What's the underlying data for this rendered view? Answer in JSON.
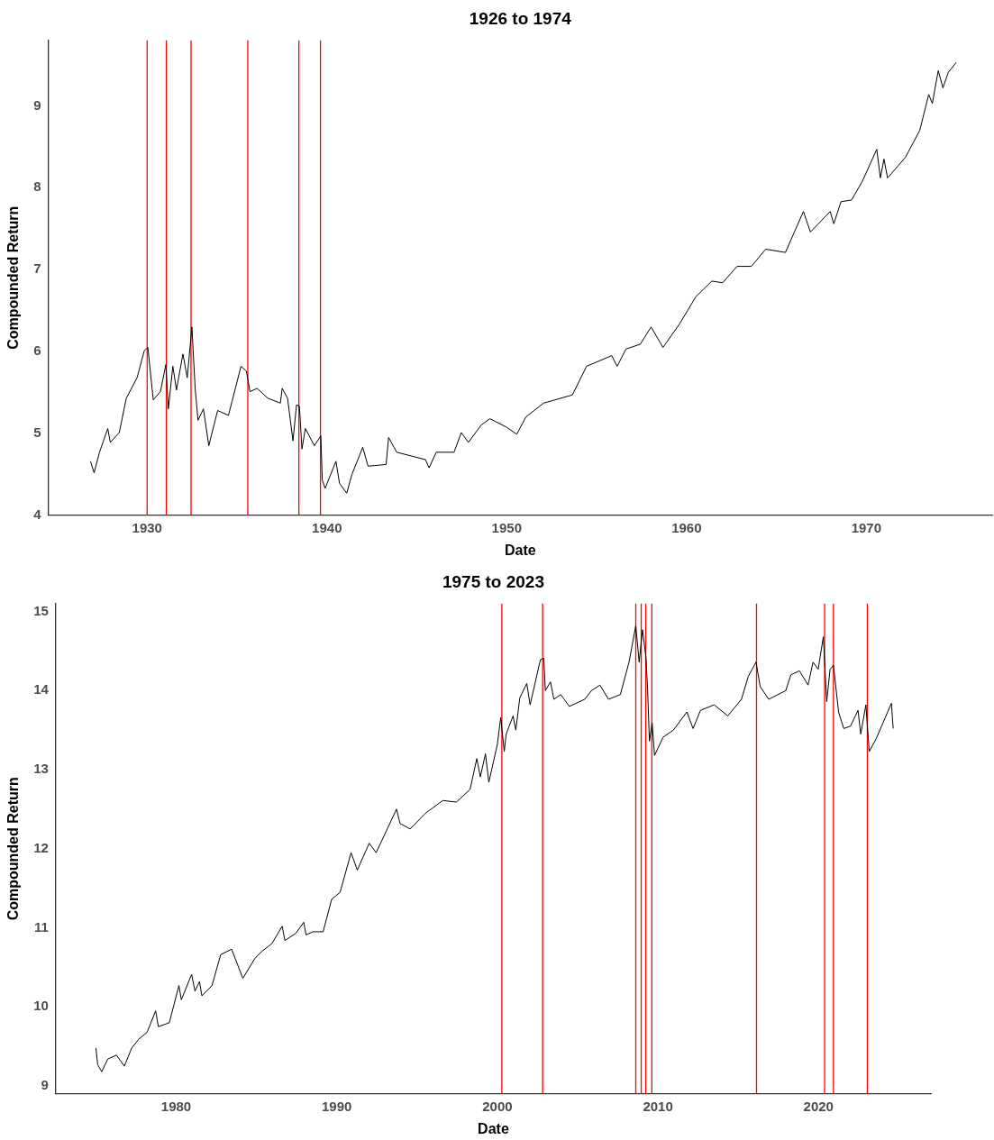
{
  "chart_data": [
    {
      "type": "line",
      "title": "1926 to 1974",
      "xlabel": "Date",
      "ylabel": "Compounded Return",
      "x": [
        1926.85,
        1927.05,
        1927.35,
        1927.81,
        1927.95,
        1928.45,
        1928.84,
        1929.44,
        1929.84,
        1930.04,
        1930.34,
        1930.74,
        1931.04,
        1931.18,
        1931.43,
        1931.63,
        1931.99,
        1932.23,
        1932.49,
        1932.67,
        1932.83,
        1933.13,
        1933.43,
        1933.92,
        1934.52,
        1934.72,
        1935.22,
        1935.52,
        1935.72,
        1936.12,
        1936.71,
        1937.41,
        1937.51,
        1937.81,
        1938.11,
        1938.31,
        1938.47,
        1938.61,
        1938.8,
        1939.3,
        1939.66,
        1939.74,
        1939.9,
        1940.5,
        1940.7,
        1941.1,
        1941.39,
        1941.99,
        1942.29,
        1943.29,
        1943.43,
        1943.88,
        1945.48,
        1945.68,
        1946.08,
        1947.07,
        1947.47,
        1947.87,
        1948.57,
        1949.06,
        1949.96,
        1950.56,
        1951.06,
        1952.05,
        1953.65,
        1954.44,
        1955.84,
        1956.14,
        1956.63,
        1957.43,
        1958.03,
        1958.69,
        1959.62,
        1960.52,
        1961.41,
        1962.01,
        1962.81,
        1963.61,
        1964.4,
        1965.5,
        1966.0,
        1966.5,
        1966.89,
        1967.99,
        1968.19,
        1968.59,
        1969.18,
        1969.78,
        1970.58,
        1970.78,
        1970.98,
        1971.18,
        1972.17,
        1972.97,
        1973.47,
        1973.67,
        1974.0,
        1974.26,
        1974.56,
        1975.0
      ],
      "series": [
        {
          "color": "#000000",
          "values": [
            4.66,
            4.52,
            4.77,
            5.06,
            4.89,
            5.01,
            5.43,
            5.68,
            6.01,
            6.05,
            5.41,
            5.51,
            5.84,
            5.3,
            5.82,
            5.53,
            5.97,
            5.68,
            6.3,
            5.55,
            5.16,
            5.3,
            4.85,
            5.28,
            5.22,
            5.39,
            5.82,
            5.76,
            5.51,
            5.55,
            5.43,
            5.37,
            5.55,
            5.43,
            4.91,
            5.35,
            5.33,
            4.81,
            5.06,
            4.85,
            4.97,
            4.43,
            4.33,
            4.66,
            4.39,
            4.27,
            4.5,
            4.83,
            4.6,
            4.62,
            4.95,
            4.77,
            4.68,
            4.58,
            4.77,
            4.77,
            5.01,
            4.89,
            5.1,
            5.18,
            5.08,
            4.99,
            5.2,
            5.37,
            5.47,
            5.82,
            5.95,
            5.82,
            6.03,
            6.09,
            6.3,
            6.05,
            6.34,
            6.67,
            6.86,
            6.84,
            7.04,
            7.04,
            7.25,
            7.21,
            7.46,
            7.71,
            7.46,
            7.71,
            7.56,
            7.83,
            7.85,
            8.08,
            8.47,
            8.12,
            8.35,
            8.12,
            8.37,
            8.7,
            9.14,
            9.03,
            9.43,
            9.22,
            9.41,
            9.53
          ]
        }
      ],
      "xlim": [
        1924.5,
        1977
      ],
      "xticks": [
        1930,
        1940,
        1950,
        1960,
        1970
      ],
      "ylim": [
        4,
        9.8
      ],
      "yticks": [
        4,
        5,
        6,
        7,
        8,
        9
      ],
      "ref_lines": [
        {
          "axis": "x",
          "value": 1930.0,
          "color": "#ff0000"
        },
        {
          "axis": "x",
          "value": 1931.07,
          "color": "#ff0000"
        },
        {
          "axis": "x",
          "value": 1932.44,
          "color": "#ff0000"
        },
        {
          "axis": "x",
          "value": 1935.6,
          "color": "#ff0000"
        },
        {
          "axis": "x",
          "value": 1938.44,
          "color": "#ff0000"
        },
        {
          "axis": "x",
          "value": 1939.64,
          "color": "#ff0000"
        }
      ]
    },
    {
      "type": "line",
      "title": "1975 to 2023",
      "xlabel": "Date",
      "ylabel": "Compounded Return",
      "x": [
        1975.0,
        1975.11,
        1975.36,
        1975.74,
        1976.28,
        1976.77,
        1977.23,
        1977.66,
        1978.19,
        1978.72,
        1978.89,
        1979.57,
        1980.17,
        1980.32,
        1980.96,
        1981.17,
        1981.45,
        1981.6,
        1982.23,
        1982.77,
        1983.45,
        1984.15,
        1984.89,
        1985.32,
        1985.96,
        1986.6,
        1986.77,
        1987.45,
        1987.94,
        1988.09,
        1988.51,
        1989.15,
        1989.68,
        1990.21,
        1990.89,
        1991.28,
        1992.02,
        1992.45,
        1993.19,
        1993.72,
        1993.94,
        1994.57,
        1995.53,
        1996.6,
        1997.45,
        1998.3,
        1998.72,
        1998.94,
        1999.26,
        1999.47,
        2000.0,
        2000.21,
        2000.43,
        2000.55,
        2000.98,
        2001.15,
        2001.4,
        2001.83,
        2002.04,
        2002.68,
        2002.89,
        2002.99,
        2003.31,
        2003.52,
        2003.95,
        2004.48,
        2005.44,
        2005.86,
        2006.39,
        2006.92,
        2007.66,
        2008.2,
        2008.62,
        2008.83,
        2009.04,
        2009.26,
        2009.36,
        2009.47,
        2009.64,
        2009.79,
        2010.32,
        2010.96,
        2011.8,
        2012.19,
        2012.65,
        2013.5,
        2014.35,
        2015.2,
        2015.63,
        2016.11,
        2016.37,
        2016.9,
        2017.96,
        2018.28,
        2018.81,
        2019.35,
        2019.66,
        2019.98,
        2020.3,
        2020.51,
        2020.72,
        2020.93,
        2021.25,
        2021.57,
        2021.99,
        2022.46,
        2022.63,
        2022.95,
        2023.16,
        2023.59,
        2024.01,
        2024.54,
        2024.65
      ],
      "series": [
        {
          "color": "#000000",
          "values": [
            9.48,
            9.27,
            9.18,
            9.34,
            9.39,
            9.25,
            9.48,
            9.59,
            9.68,
            9.95,
            9.75,
            9.8,
            10.27,
            10.09,
            10.41,
            10.2,
            10.32,
            10.14,
            10.27,
            10.66,
            10.73,
            10.36,
            10.61,
            10.7,
            10.8,
            11.02,
            10.84,
            10.93,
            11.07,
            10.91,
            10.95,
            10.95,
            11.36,
            11.45,
            11.95,
            11.73,
            12.07,
            11.95,
            12.27,
            12.5,
            12.32,
            12.25,
            12.45,
            12.61,
            12.59,
            12.75,
            13.14,
            12.91,
            13.2,
            12.84,
            13.32,
            13.66,
            13.23,
            13.45,
            13.68,
            13.5,
            13.91,
            14.09,
            13.82,
            14.39,
            14.41,
            14.0,
            14.11,
            13.89,
            13.95,
            13.8,
            13.89,
            14.0,
            14.07,
            13.89,
            13.95,
            14.36,
            14.82,
            14.36,
            14.77,
            14.41,
            14.0,
            13.36,
            13.59,
            13.18,
            13.41,
            13.5,
            13.73,
            13.52,
            13.75,
            13.82,
            13.68,
            13.89,
            14.18,
            14.36,
            14.05,
            13.89,
            14.0,
            14.2,
            14.25,
            14.07,
            14.36,
            14.27,
            14.68,
            13.86,
            14.27,
            14.32,
            13.73,
            13.52,
            13.55,
            13.75,
            13.45,
            13.82,
            13.23,
            13.39,
            13.59,
            13.84,
            13.52
          ]
        }
      ],
      "xlim": [
        1972.5,
        2027
      ],
      "xticks": [
        1980,
        1990,
        2000,
        2010,
        2020
      ],
      "ylim": [
        8.9,
        15.1
      ],
      "yticks": [
        9,
        10,
        11,
        12,
        13,
        14,
        15
      ],
      "ref_lines": [
        {
          "axis": "x",
          "value": 2000.28,
          "color": "#ff0000"
        },
        {
          "axis": "x",
          "value": 2002.82,
          "color": "#ff0000"
        },
        {
          "axis": "x",
          "value": 2008.62,
          "color": "#ff0000"
        },
        {
          "axis": "x",
          "value": 2008.96,
          "color": "#ff0000"
        },
        {
          "axis": "x",
          "value": 2009.24,
          "color": "#ff0000"
        },
        {
          "axis": "x",
          "value": 2009.62,
          "color": "#ff0000"
        },
        {
          "axis": "x",
          "value": 2016.14,
          "color": "#ff0000"
        },
        {
          "axis": "x",
          "value": 2020.38,
          "color": "#ff0000"
        },
        {
          "axis": "x",
          "value": 2020.93,
          "color": "#ff0000"
        },
        {
          "axis": "x",
          "value": 2023.04,
          "color": "#ff0000"
        }
      ]
    }
  ]
}
